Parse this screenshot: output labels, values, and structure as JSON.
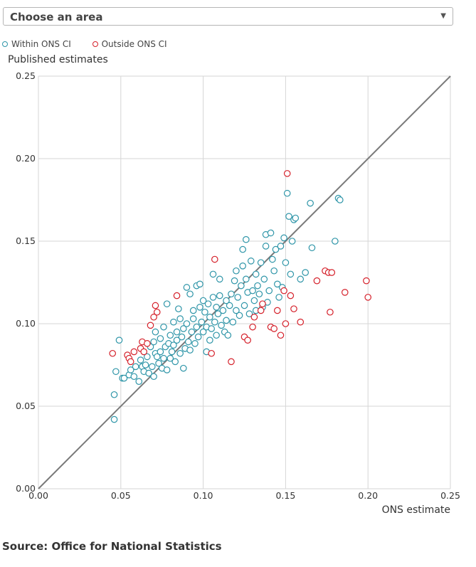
{
  "dropdown": {
    "selected": "Choose an area"
  },
  "legend": {
    "within": {
      "label": "Within ONS CI",
      "color": "#2e95a8"
    },
    "outside": {
      "label": "Outside ONS CI",
      "color": "#d5202a"
    }
  },
  "source": "Source: Office for National Statistics",
  "chart_data": {
    "type": "scatter",
    "xlabel": "ONS estimate",
    "ylabel": "Published estimates",
    "xlim": [
      0,
      0.25
    ],
    "ylim": [
      0,
      0.25
    ],
    "xticks": [
      "0.00",
      "0.05",
      "0.10",
      "0.15",
      "0.20",
      "0.25"
    ],
    "yticks": [
      "0.00",
      "0.05",
      "0.10",
      "0.15",
      "0.20",
      "0.25"
    ],
    "grid": true,
    "reference_line": "y = x",
    "legend_position": "top-left",
    "series": [
      {
        "name": "Within ONS CI",
        "color": "#2e95a8",
        "points": [
          [
            0.046,
            0.042
          ],
          [
            0.046,
            0.057
          ],
          [
            0.047,
            0.071
          ],
          [
            0.049,
            0.09
          ],
          [
            0.051,
            0.067
          ],
          [
            0.052,
            0.067
          ],
          [
            0.055,
            0.069
          ],
          [
            0.056,
            0.072
          ],
          [
            0.058,
            0.068
          ],
          [
            0.059,
            0.074
          ],
          [
            0.061,
            0.065
          ],
          [
            0.062,
            0.078
          ],
          [
            0.063,
            0.074
          ],
          [
            0.064,
            0.071
          ],
          [
            0.065,
            0.075
          ],
          [
            0.066,
            0.08
          ],
          [
            0.067,
            0.07
          ],
          [
            0.068,
            0.086
          ],
          [
            0.069,
            0.074
          ],
          [
            0.07,
            0.089
          ],
          [
            0.07,
            0.068
          ],
          [
            0.071,
            0.082
          ],
          [
            0.071,
            0.095
          ],
          [
            0.072,
            0.08
          ],
          [
            0.073,
            0.076
          ],
          [
            0.074,
            0.083
          ],
          [
            0.074,
            0.091
          ],
          [
            0.075,
            0.073
          ],
          [
            0.076,
            0.098
          ],
          [
            0.076,
            0.079
          ],
          [
            0.077,
            0.086
          ],
          [
            0.078,
            0.072
          ],
          [
            0.078,
            0.112
          ],
          [
            0.079,
            0.088
          ],
          [
            0.08,
            0.079
          ],
          [
            0.08,
            0.093
          ],
          [
            0.081,
            0.083
          ],
          [
            0.082,
            0.101
          ],
          [
            0.082,
            0.087
          ],
          [
            0.083,
            0.077
          ],
          [
            0.084,
            0.09
          ],
          [
            0.084,
            0.095
          ],
          [
            0.085,
            0.109
          ],
          [
            0.086,
            0.082
          ],
          [
            0.086,
            0.103
          ],
          [
            0.087,
            0.092
          ],
          [
            0.088,
            0.073
          ],
          [
            0.088,
            0.097
          ],
          [
            0.089,
            0.085
          ],
          [
            0.09,
            0.122
          ],
          [
            0.09,
            0.1
          ],
          [
            0.091,
            0.089
          ],
          [
            0.092,
            0.084
          ],
          [
            0.092,
            0.118
          ],
          [
            0.093,
            0.095
          ],
          [
            0.094,
            0.103
          ],
          [
            0.094,
            0.108
          ],
          [
            0.095,
            0.088
          ],
          [
            0.096,
            0.098
          ],
          [
            0.096,
            0.123
          ],
          [
            0.097,
            0.092
          ],
          [
            0.098,
            0.11
          ],
          [
            0.098,
            0.124
          ],
          [
            0.099,
            0.101
          ],
          [
            0.1,
            0.095
          ],
          [
            0.1,
            0.114
          ],
          [
            0.101,
            0.107
          ],
          [
            0.102,
            0.083
          ],
          [
            0.102,
            0.098
          ],
          [
            0.103,
            0.112
          ],
          [
            0.104,
            0.09
          ],
          [
            0.104,
            0.104
          ],
          [
            0.105,
            0.097
          ],
          [
            0.106,
            0.116
          ],
          [
            0.106,
            0.13
          ],
          [
            0.107,
            0.101
          ],
          [
            0.108,
            0.11
          ],
          [
            0.108,
            0.093
          ],
          [
            0.109,
            0.106
          ],
          [
            0.11,
            0.127
          ],
          [
            0.11,
            0.117
          ],
          [
            0.111,
            0.099
          ],
          [
            0.112,
            0.108
          ],
          [
            0.113,
            0.095
          ],
          [
            0.114,
            0.114
          ],
          [
            0.114,
            0.102
          ],
          [
            0.115,
            0.093
          ],
          [
            0.116,
            0.111
          ],
          [
            0.117,
            0.118
          ],
          [
            0.118,
            0.101
          ],
          [
            0.119,
            0.126
          ],
          [
            0.12,
            0.108
          ],
          [
            0.12,
            0.132
          ],
          [
            0.121,
            0.116
          ],
          [
            0.122,
            0.105
          ],
          [
            0.123,
            0.123
          ],
          [
            0.124,
            0.145
          ],
          [
            0.124,
            0.135
          ],
          [
            0.125,
            0.111
          ],
          [
            0.126,
            0.151
          ],
          [
            0.126,
            0.127
          ],
          [
            0.127,
            0.119
          ],
          [
            0.128,
            0.106
          ],
          [
            0.129,
            0.138
          ],
          [
            0.13,
            0.12
          ],
          [
            0.131,
            0.114
          ],
          [
            0.132,
            0.13
          ],
          [
            0.132,
            0.108
          ],
          [
            0.133,
            0.123
          ],
          [
            0.134,
            0.118
          ],
          [
            0.135,
            0.137
          ],
          [
            0.136,
            0.11
          ],
          [
            0.137,
            0.127
          ],
          [
            0.138,
            0.154
          ],
          [
            0.138,
            0.147
          ],
          [
            0.139,
            0.113
          ],
          [
            0.14,
            0.12
          ],
          [
            0.141,
            0.155
          ],
          [
            0.142,
            0.139
          ],
          [
            0.143,
            0.132
          ],
          [
            0.144,
            0.145
          ],
          [
            0.145,
            0.124
          ],
          [
            0.146,
            0.116
          ],
          [
            0.147,
            0.147
          ],
          [
            0.148,
            0.122
          ],
          [
            0.149,
            0.152
          ],
          [
            0.15,
            0.137
          ],
          [
            0.151,
            0.179
          ],
          [
            0.152,
            0.165
          ],
          [
            0.153,
            0.13
          ],
          [
            0.154,
            0.15
          ],
          [
            0.155,
            0.163
          ],
          [
            0.156,
            0.164
          ],
          [
            0.159,
            0.127
          ],
          [
            0.162,
            0.131
          ],
          [
            0.165,
            0.173
          ],
          [
            0.166,
            0.146
          ],
          [
            0.18,
            0.15
          ],
          [
            0.182,
            0.176
          ],
          [
            0.183,
            0.175
          ]
        ]
      },
      {
        "name": "Outside ONS CI",
        "color": "#d5202a",
        "points": [
          [
            0.045,
            0.082
          ],
          [
            0.054,
            0.081
          ],
          [
            0.055,
            0.079
          ],
          [
            0.056,
            0.077
          ],
          [
            0.058,
            0.083
          ],
          [
            0.062,
            0.085
          ],
          [
            0.063,
            0.089
          ],
          [
            0.064,
            0.083
          ],
          [
            0.066,
            0.088
          ],
          [
            0.068,
            0.099
          ],
          [
            0.07,
            0.104
          ],
          [
            0.071,
            0.111
          ],
          [
            0.072,
            0.107
          ],
          [
            0.084,
            0.117
          ],
          [
            0.105,
            0.082
          ],
          [
            0.107,
            0.139
          ],
          [
            0.117,
            0.077
          ],
          [
            0.125,
            0.092
          ],
          [
            0.127,
            0.09
          ],
          [
            0.13,
            0.098
          ],
          [
            0.131,
            0.104
          ],
          [
            0.135,
            0.108
          ],
          [
            0.136,
            0.112
          ],
          [
            0.141,
            0.098
          ],
          [
            0.143,
            0.097
          ],
          [
            0.145,
            0.108
          ],
          [
            0.147,
            0.093
          ],
          [
            0.149,
            0.12
          ],
          [
            0.15,
            0.1
          ],
          [
            0.151,
            0.191
          ],
          [
            0.153,
            0.117
          ],
          [
            0.155,
            0.109
          ],
          [
            0.159,
            0.101
          ],
          [
            0.169,
            0.126
          ],
          [
            0.174,
            0.132
          ],
          [
            0.176,
            0.131
          ],
          [
            0.177,
            0.107
          ],
          [
            0.178,
            0.131
          ],
          [
            0.186,
            0.119
          ],
          [
            0.199,
            0.126
          ],
          [
            0.2,
            0.116
          ]
        ]
      }
    ]
  }
}
